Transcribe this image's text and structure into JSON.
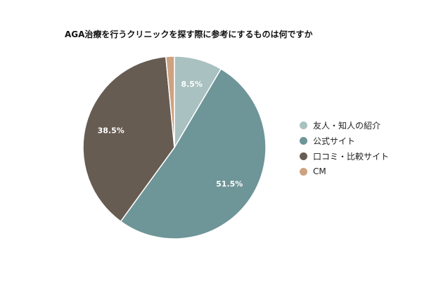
{
  "chart_data": {
    "type": "pie",
    "title": "AGA治療を行うクリニックを探す際に参考にするものは何ですか",
    "slices": [
      {
        "name": "友人・知人の紹介",
        "value": 8.5,
        "label": "8.5%",
        "color": "#a9c1c0"
      },
      {
        "name": "公式サイト",
        "value": 51.5,
        "label": "51.5%",
        "color": "#6e9598"
      },
      {
        "name": "口コミ・比較サイト",
        "value": 38.5,
        "label": "38.5%",
        "color": "#675c52"
      },
      {
        "name": "CM",
        "value": 1.5,
        "label": "",
        "color": "#cda281"
      }
    ],
    "legend_position": "right"
  }
}
